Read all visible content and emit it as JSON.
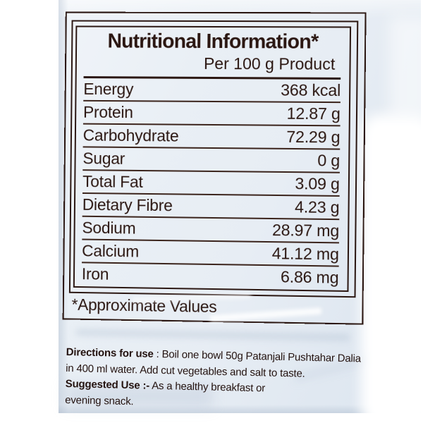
{
  "panel": {
    "title": "Nutritional Information*",
    "serving_basis": "Per 100 g Product",
    "rows": [
      {
        "name": "Energy",
        "value": "368 kcal"
      },
      {
        "name": "Protein",
        "value": "12.87 g"
      },
      {
        "name": "Carbohydrate",
        "value": "72.29 g"
      },
      {
        "name": "Sugar",
        "value": "0 g"
      },
      {
        "name": "Total Fat",
        "value": "3.09 g"
      },
      {
        "name": "Dietary Fibre",
        "value": "4.23 g"
      },
      {
        "name": "Sodium",
        "value": "28.97 mg"
      },
      {
        "name": "Calcium",
        "value": "41.12 mg"
      },
      {
        "name": "Iron",
        "value": "6.86 mg"
      }
    ],
    "footnote": "*Approximate Values"
  },
  "directions": {
    "line1_bold": "Directions for use",
    "line1_rest": " : Boil one bowl 50g Patanjali Pushtahar Dalia",
    "line2": "in 400 ml water. Add cut vegetables and salt to taste.",
    "line3_bold": "Suggested Use :-",
    "line3_rest": " As a healthy breakfast or",
    "line4": "evening snack."
  },
  "colors": {
    "ink": "#2b1712",
    "row_line": "#3b241c",
    "package": "#e7edf4"
  }
}
